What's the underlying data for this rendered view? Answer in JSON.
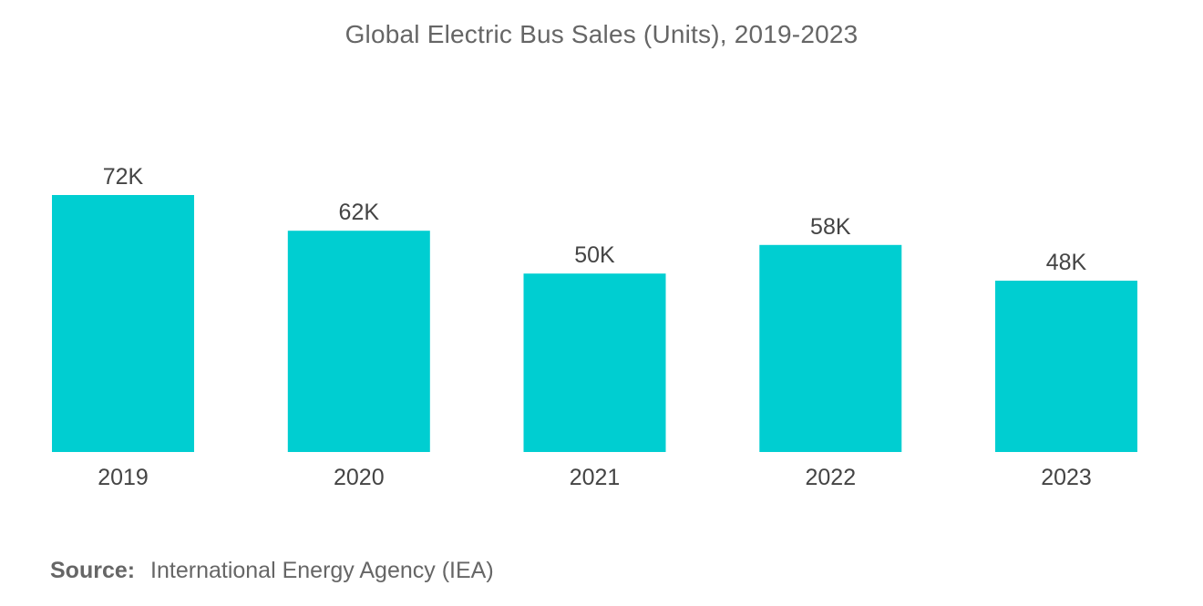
{
  "chart_data": {
    "type": "bar",
    "title": "Global Electric Bus Sales (Units), 2019-2023",
    "categories": [
      "2019",
      "2020",
      "2021",
      "2022",
      "2023"
    ],
    "values": [
      72000,
      62000,
      50000,
      58000,
      48000
    ],
    "data_labels": [
      "72K",
      "62K",
      "50K",
      "58K",
      "48K"
    ],
    "xlabel": "",
    "ylabel": "",
    "ylim": [
      0,
      72000
    ],
    "grid": false,
    "legend": "none",
    "bar_color": "#00CED1"
  },
  "source": {
    "label": "Source:",
    "text": "International Energy Agency (IEA)"
  },
  "colors": {
    "text": "#666666",
    "label": "#444444"
  }
}
